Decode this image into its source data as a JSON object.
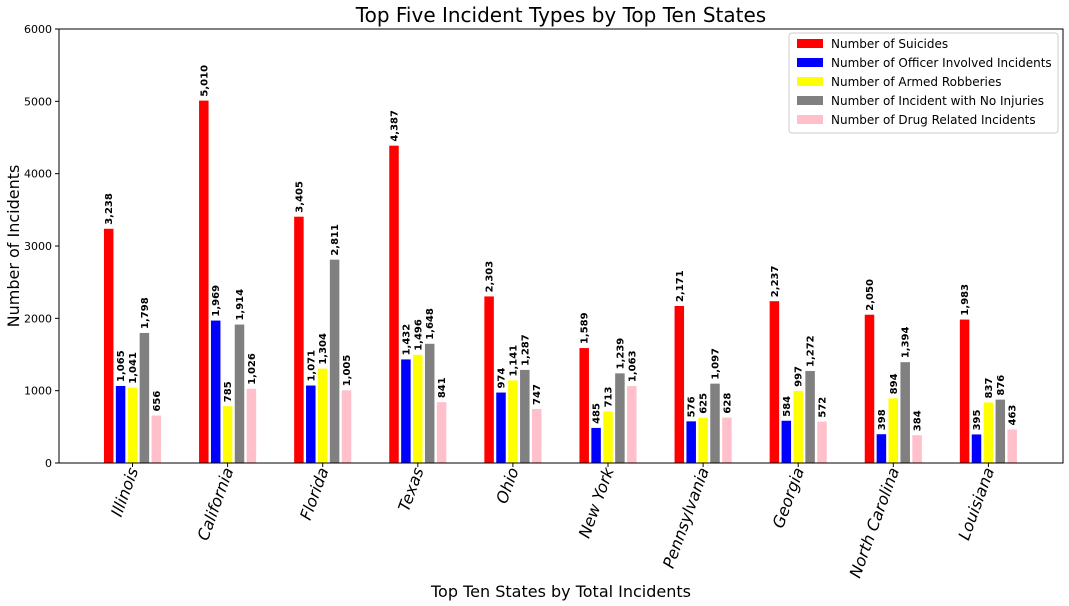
{
  "chart_data": {
    "type": "bar",
    "title": "Top Five Incident Types by Top Ten States",
    "xlabel": "Top Ten States by Total Incidents",
    "ylabel": "Number of Incidents",
    "ylim": [
      0,
      6000
    ],
    "yticks": [
      "0",
      "1000",
      "2000",
      "3000",
      "4000",
      "5000",
      "6000"
    ],
    "ytick_values": [
      0,
      1000,
      2000,
      3000,
      4000,
      5000,
      6000
    ],
    "grid": false,
    "legend_position": "top-right",
    "categories": [
      "Illinois",
      "California",
      "Florida",
      "Texas",
      "Ohio",
      "New York",
      "Pennsylvania",
      "Georgia",
      "North Carolina",
      "Louisiana"
    ],
    "series": [
      {
        "name": "Number of Suicides",
        "color": "#ff0000",
        "values": [
          3238,
          5010,
          3405,
          4387,
          2303,
          1589,
          2171,
          2237,
          2050,
          1983
        ],
        "labels": [
          "3,238",
          "5,010",
          "3,405",
          "4,387",
          "2,303",
          "1,589",
          "2,171",
          "2,237",
          "2,050",
          "1,983"
        ]
      },
      {
        "name": "Number of Officer Involved Incidents",
        "color": "#0000ff",
        "values": [
          1065,
          1969,
          1071,
          1432,
          974,
          485,
          576,
          584,
          398,
          395
        ],
        "labels": [
          "1,065",
          "1,969",
          "1,071",
          "1,432",
          "974",
          "485",
          "576",
          "584",
          "398",
          "395"
        ]
      },
      {
        "name": "Number of Armed Robberies",
        "color": "#ffff00",
        "values": [
          1041,
          785,
          1304,
          1496,
          1141,
          713,
          625,
          997,
          894,
          837
        ],
        "labels": [
          "1,041",
          "785",
          "1,304",
          "1,496",
          "1,141",
          "713",
          "625",
          "997",
          "894",
          "837"
        ]
      },
      {
        "name": "Number of Incident with No Injuries",
        "color": "#808080",
        "values": [
          1798,
          1914,
          2811,
          1648,
          1287,
          1239,
          1097,
          1272,
          1394,
          876
        ],
        "labels": [
          "1,798",
          "1,914",
          "2,811",
          "1,648",
          "1,287",
          "1,239",
          "1,097",
          "1,272",
          "1,394",
          "876"
        ]
      },
      {
        "name": "Number of Drug Related Incidents",
        "color": "#ffc0cb",
        "values": [
          656,
          1026,
          1005,
          841,
          747,
          1063,
          628,
          572,
          384,
          463
        ],
        "labels": [
          "656",
          "1,026",
          "1,005",
          "841",
          "747",
          "1,063",
          "628",
          "572",
          "384",
          "463"
        ]
      }
    ]
  }
}
